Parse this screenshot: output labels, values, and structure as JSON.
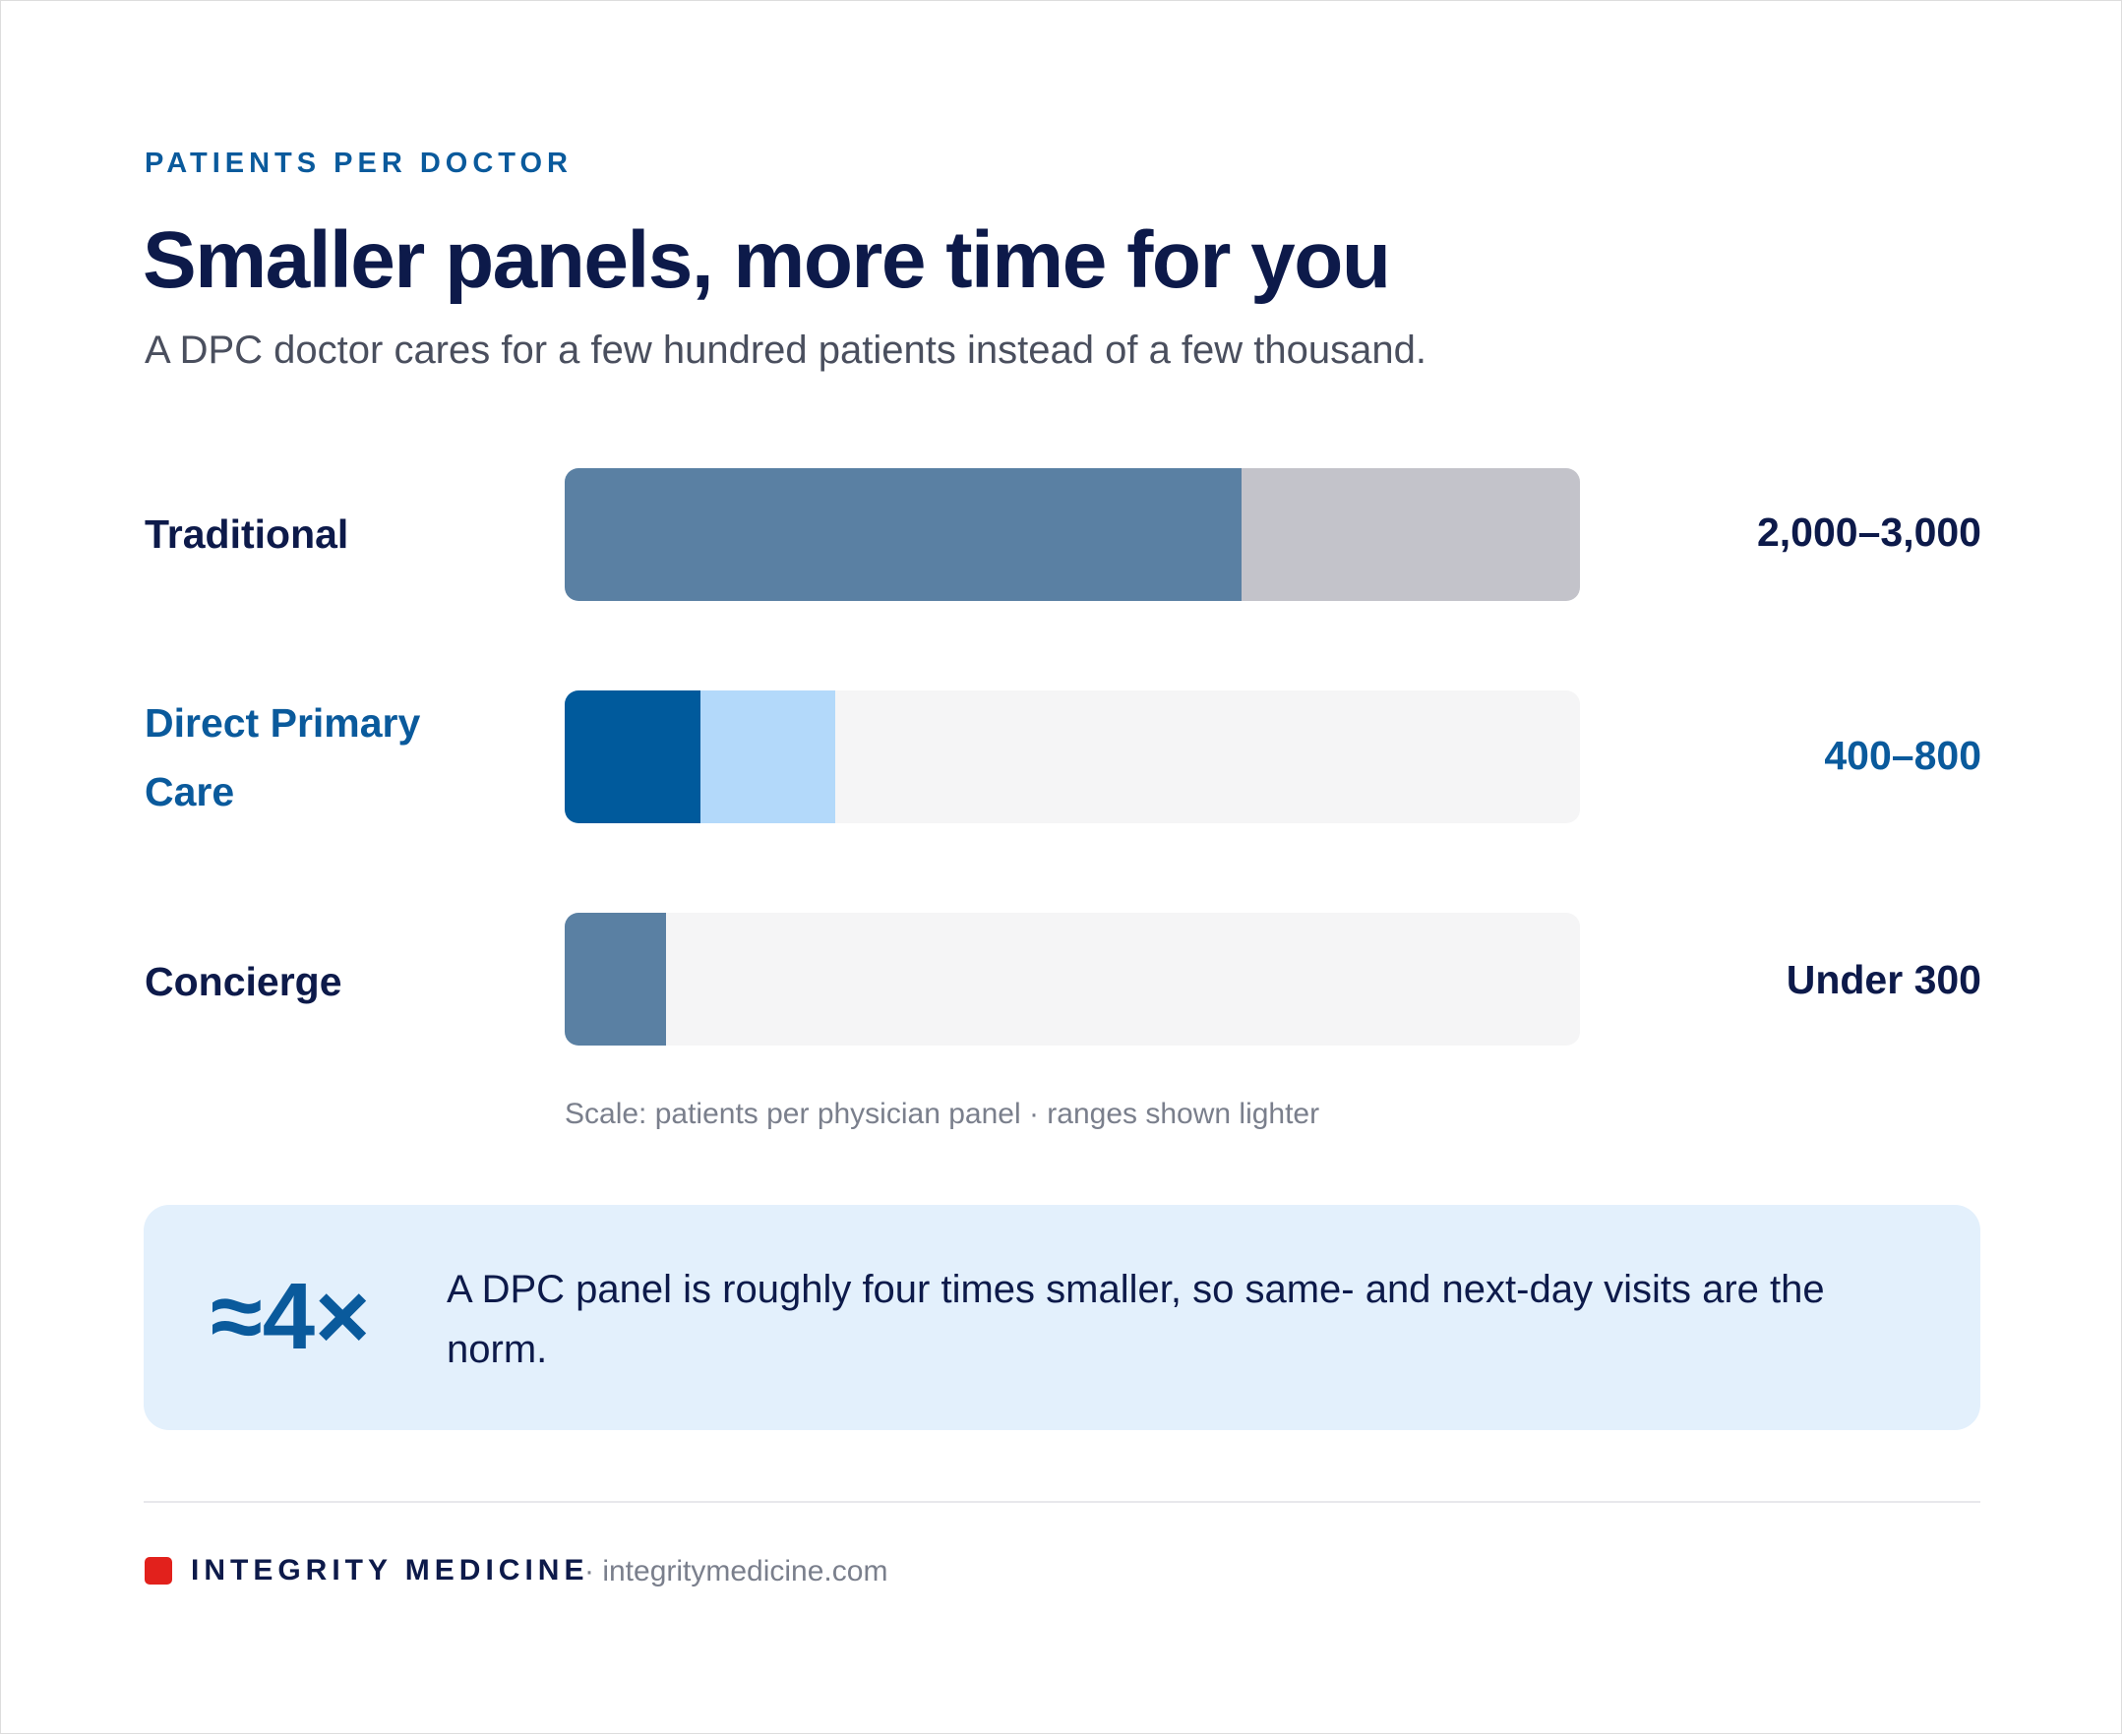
{
  "header": {
    "eyebrow": "PATIENTS PER DOCTOR",
    "title": "Smaller panels, more time for you",
    "subtitle": "A DPC doctor cares for a few hundred patients instead of a few thousand."
  },
  "chart_data": {
    "type": "bar",
    "orientation": "horizontal",
    "categories": [
      "Traditional",
      "Direct Primary Care",
      "Concierge"
    ],
    "value_labels": [
      "2,000–3,000",
      "400–800",
      "Under 300"
    ],
    "ranges": [
      {
        "low": 2000,
        "high": 3000
      },
      {
        "low": 400,
        "high": 800
      },
      {
        "low": 0,
        "high": 300
      }
    ],
    "xlim": [
      0,
      3000
    ],
    "highlight_category": "Direct Primary Care",
    "note": "Scale: patients per physician panel · ranges shown lighter",
    "colors": {
      "base": "#5a80a3",
      "base_range": "#c3c3ca",
      "highlight": "#005a9c",
      "highlight_range": "#b3d9fa",
      "track": "#f5f5f6"
    }
  },
  "callout": {
    "figure": "≈4×",
    "text": "A DPC panel is roughly four times smaller, so same- and next-day visits are the norm."
  },
  "footer": {
    "brand": "INTEGRITY MEDICINE",
    "url": "· integritymedicine.com",
    "brand_color": "#e2211c"
  }
}
